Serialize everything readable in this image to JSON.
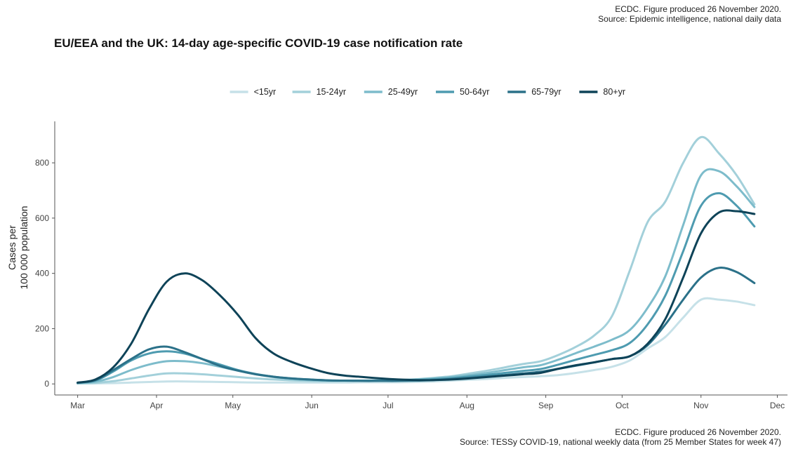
{
  "credits": {
    "top_line1": "ECDC. Figure produced 26 November 2020.",
    "top_line2": "Source: Epidemic intelligence, national daily data",
    "bottom_line1": "ECDC. Figure produced 26 November 2020.",
    "bottom_line2": "Source: TESSy COVID-19, national weekly data (from 25 Member States for week 47)"
  },
  "chart_data": {
    "type": "line",
    "title": "EU/EEA and the UK: 14-day age-specific COVID-19 case notification rate",
    "ylabel_line1": "Cases per",
    "ylabel_line2": "100 000 population",
    "xlabel": "",
    "ylim": [
      -40,
      950
    ],
    "yticks": [
      0,
      200,
      400,
      600,
      800
    ],
    "xlim": [
      "2020-02-21",
      "2020-12-05"
    ],
    "xticks": [
      {
        "date": "2020-03-01",
        "label": "Mar"
      },
      {
        "date": "2020-04-01",
        "label": "Apr"
      },
      {
        "date": "2020-05-01",
        "label": "May"
      },
      {
        "date": "2020-06-01",
        "label": "Jun"
      },
      {
        "date": "2020-07-01",
        "label": "Jul"
      },
      {
        "date": "2020-08-01",
        "label": "Aug"
      },
      {
        "date": "2020-09-01",
        "label": "Sep"
      },
      {
        "date": "2020-10-01",
        "label": "Oct"
      },
      {
        "date": "2020-11-01",
        "label": "Nov"
      },
      {
        "date": "2020-12-01",
        "label": "Dec"
      }
    ],
    "legend_position": "top",
    "grid": false,
    "x": [
      "2020-03-01",
      "2020-03-08",
      "2020-03-15",
      "2020-03-22",
      "2020-03-29",
      "2020-04-05",
      "2020-04-12",
      "2020-04-19",
      "2020-04-26",
      "2020-05-03",
      "2020-05-10",
      "2020-05-17",
      "2020-05-24",
      "2020-05-31",
      "2020-06-07",
      "2020-06-14",
      "2020-06-21",
      "2020-06-28",
      "2020-07-05",
      "2020-07-12",
      "2020-07-19",
      "2020-07-26",
      "2020-08-02",
      "2020-08-09",
      "2020-08-16",
      "2020-08-23",
      "2020-08-30",
      "2020-09-06",
      "2020-09-13",
      "2020-09-20",
      "2020-09-27",
      "2020-10-04",
      "2020-10-11",
      "2020-10-18",
      "2020-10-25",
      "2020-11-01",
      "2020-11-08",
      "2020-11-15",
      "2020-11-22"
    ],
    "series": [
      {
        "name": "<15yr",
        "color": "#c6e1e8",
        "values": [
          1,
          2,
          3,
          5,
          7,
          9,
          9,
          8,
          7,
          6,
          5,
          5,
          5,
          5,
          5,
          5,
          6,
          6,
          6,
          7,
          9,
          12,
          15,
          18,
          22,
          25,
          28,
          32,
          40,
          50,
          62,
          85,
          128,
          170,
          240,
          305,
          305,
          298,
          285
        ]
      },
      {
        "name": "15-24yr",
        "color": "#a3d0da",
        "values": [
          2,
          4,
          10,
          20,
          30,
          38,
          38,
          35,
          30,
          25,
          20,
          16,
          13,
          11,
          10,
          10,
          11,
          12,
          14,
          17,
          22,
          28,
          38,
          48,
          60,
          72,
          82,
          105,
          135,
          175,
          245,
          410,
          585,
          660,
          800,
          893,
          835,
          755,
          650
        ]
      },
      {
        "name": "25-49yr",
        "color": "#7dbccb",
        "values": [
          3,
          8,
          25,
          50,
          70,
          82,
          82,
          75,
          62,
          48,
          35,
          25,
          18,
          14,
          12,
          12,
          12,
          13,
          14,
          16,
          20,
          25,
          32,
          40,
          50,
          60,
          68,
          88,
          112,
          135,
          160,
          195,
          275,
          390,
          575,
          755,
          770,
          715,
          640
        ]
      },
      {
        "name": "50-64yr",
        "color": "#4e9bb0",
        "values": [
          4,
          12,
          45,
          85,
          110,
          118,
          110,
          90,
          70,
          50,
          36,
          26,
          20,
          16,
          13,
          12,
          12,
          12,
          13,
          14,
          17,
          21,
          27,
          33,
          40,
          47,
          54,
          70,
          88,
          105,
          122,
          148,
          215,
          320,
          480,
          645,
          690,
          645,
          570
        ]
      },
      {
        "name": "65-79yr",
        "color": "#2b7189",
        "values": [
          4,
          14,
          50,
          90,
          125,
          135,
          115,
          90,
          65,
          48,
          35,
          26,
          20,
          16,
          13,
          12,
          11,
          11,
          11,
          12,
          14,
          18,
          22,
          27,
          32,
          38,
          44,
          55,
          66,
          78,
          90,
          100,
          140,
          215,
          305,
          385,
          420,
          405,
          365
        ]
      },
      {
        "name": "80+yr",
        "color": "#0e4358",
        "values": [
          5,
          16,
          60,
          145,
          270,
          370,
          400,
          375,
          320,
          250,
          165,
          110,
          80,
          58,
          40,
          30,
          25,
          20,
          16,
          14,
          14,
          16,
          20,
          25,
          30,
          35,
          40,
          55,
          68,
          78,
          90,
          100,
          145,
          235,
          385,
          545,
          620,
          625,
          615
        ]
      }
    ]
  }
}
